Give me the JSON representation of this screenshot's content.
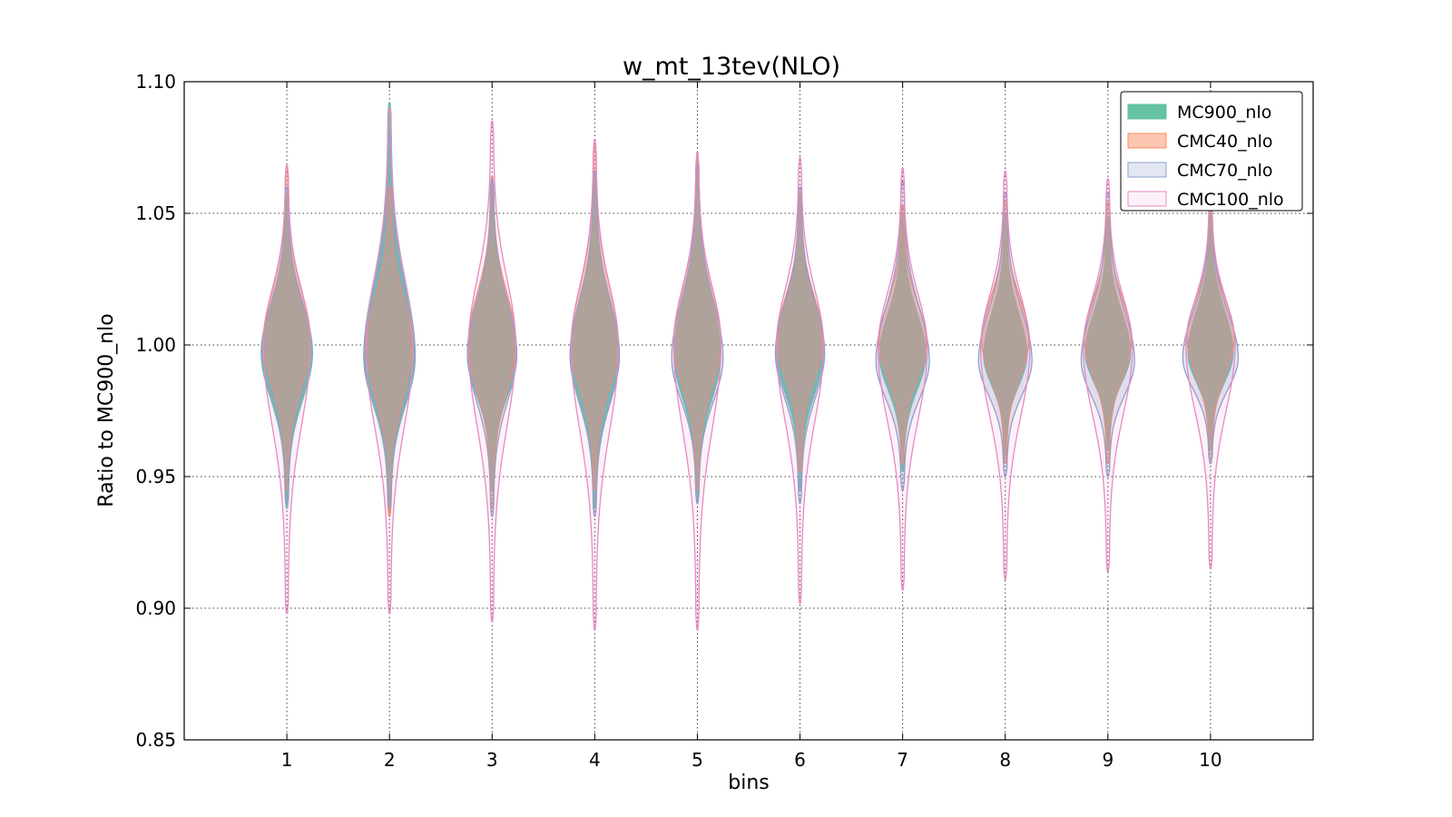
{
  "chart_data": {
    "type": "violin",
    "title": "w_mt_13tev(NLO)",
    "xlabel": "bins",
    "ylabel": "Ratio to MC900_nlo",
    "ylim": [
      0.85,
      1.1
    ],
    "y_ticks": [
      "0.85",
      "0.90",
      "0.95",
      "1.00",
      "1.05",
      "1.10"
    ],
    "x_ticks": [
      "1",
      "2",
      "3",
      "4",
      "5",
      "6",
      "7",
      "8",
      "9",
      "10"
    ],
    "xlim": [
      0,
      11
    ],
    "grid": true,
    "legend_position": "top-right",
    "series": [
      {
        "name": "MC900_nlo",
        "fill": "#66c2a5",
        "edge": "#66c2a5",
        "fill_opacity": 1.0,
        "bins": [
          {
            "min": 0.938,
            "max": 1.058,
            "center": 0.997,
            "width": 0.5
          },
          {
            "min": 0.935,
            "max": 1.092,
            "center": 0.995,
            "width": 0.5
          },
          {
            "min": 0.945,
            "max": 1.062,
            "center": 0.996,
            "width": 0.48
          },
          {
            "min": 0.938,
            "max": 1.066,
            "center": 0.996,
            "width": 0.48
          },
          {
            "min": 0.94,
            "max": 1.07,
            "center": 0.996,
            "width": 0.45
          },
          {
            "min": 0.945,
            "max": 1.058,
            "center": 0.997,
            "width": 0.46
          },
          {
            "min": 0.952,
            "max": 1.05,
            "center": 0.996,
            "width": 0.45
          },
          {
            "min": 0.958,
            "max": 1.05,
            "center": 0.996,
            "width": 0.42
          },
          {
            "min": 0.96,
            "max": 1.048,
            "center": 0.997,
            "width": 0.44
          },
          {
            "min": 0.96,
            "max": 1.05,
            "center": 0.997,
            "width": 0.44
          }
        ]
      },
      {
        "name": "CMC40_nlo",
        "fill": "#fc8d62",
        "edge": "#fc8d62",
        "fill_opacity": 0.5,
        "bins": [
          {
            "min": 0.945,
            "max": 1.068,
            "center": 1.001,
            "width": 0.46
          },
          {
            "min": 0.935,
            "max": 1.06,
            "center": 1.0,
            "width": 0.44
          },
          {
            "min": 0.938,
            "max": 1.064,
            "center": 1.001,
            "width": 0.46
          },
          {
            "min": 0.945,
            "max": 1.076,
            "center": 1.0,
            "width": 0.46
          },
          {
            "min": 0.945,
            "max": 1.072,
            "center": 1.001,
            "width": 0.46
          },
          {
            "min": 0.952,
            "max": 1.058,
            "center": 1.002,
            "width": 0.44
          },
          {
            "min": 0.955,
            "max": 1.053,
            "center": 1.001,
            "width": 0.46
          },
          {
            "min": 0.955,
            "max": 1.055,
            "center": 1.002,
            "width": 0.46
          },
          {
            "min": 0.955,
            "max": 1.054,
            "center": 1.002,
            "width": 0.46
          },
          {
            "min": 0.955,
            "max": 1.052,
            "center": 1.003,
            "width": 0.46
          }
        ]
      },
      {
        "name": "CMC70_nlo",
        "fill": "#8da0cb",
        "edge": "#8da0cb",
        "fill_opacity": 0.25,
        "bins": [
          {
            "min": 0.94,
            "max": 1.06,
            "center": 0.998,
            "width": 0.48
          },
          {
            "min": 0.938,
            "max": 1.08,
            "center": 0.996,
            "width": 0.5
          },
          {
            "min": 0.935,
            "max": 1.063,
            "center": 0.997,
            "width": 0.48
          },
          {
            "min": 0.935,
            "max": 1.066,
            "center": 0.996,
            "width": 0.48
          },
          {
            "min": 0.94,
            "max": 1.068,
            "center": 0.995,
            "width": 0.5
          },
          {
            "min": 0.94,
            "max": 1.06,
            "center": 0.997,
            "width": 0.48
          },
          {
            "min": 0.945,
            "max": 1.062,
            "center": 0.994,
            "width": 0.52
          },
          {
            "min": 0.95,
            "max": 1.058,
            "center": 0.994,
            "width": 0.52
          },
          {
            "min": 0.95,
            "max": 1.058,
            "center": 0.994,
            "width": 0.52
          },
          {
            "min": 0.955,
            "max": 1.054,
            "center": 0.995,
            "width": 0.54
          }
        ]
      },
      {
        "name": "CMC100_nlo",
        "fill": "#e78ac3",
        "edge": "#e78ac3",
        "fill_opacity": 0.12,
        "bins": [
          {
            "min": 0.898,
            "max": 1.068,
            "center": 1.0,
            "width": 0.46
          },
          {
            "min": 0.898,
            "max": 1.09,
            "center": 0.999,
            "width": 0.46
          },
          {
            "min": 0.895,
            "max": 1.085,
            "center": 1.0,
            "width": 0.46
          },
          {
            "min": 0.892,
            "max": 1.078,
            "center": 0.999,
            "width": 0.46
          },
          {
            "min": 0.892,
            "max": 1.073,
            "center": 1.0,
            "width": 0.46
          },
          {
            "min": 0.902,
            "max": 1.071,
            "center": 1.0,
            "width": 0.46
          },
          {
            "min": 0.907,
            "max": 1.067,
            "center": 0.999,
            "width": 0.48
          },
          {
            "min": 0.911,
            "max": 1.066,
            "center": 0.999,
            "width": 0.48
          },
          {
            "min": 0.914,
            "max": 1.063,
            "center": 0.999,
            "width": 0.48
          },
          {
            "min": 0.915,
            "max": 1.058,
            "center": 1.0,
            "width": 0.48
          }
        ]
      }
    ]
  }
}
